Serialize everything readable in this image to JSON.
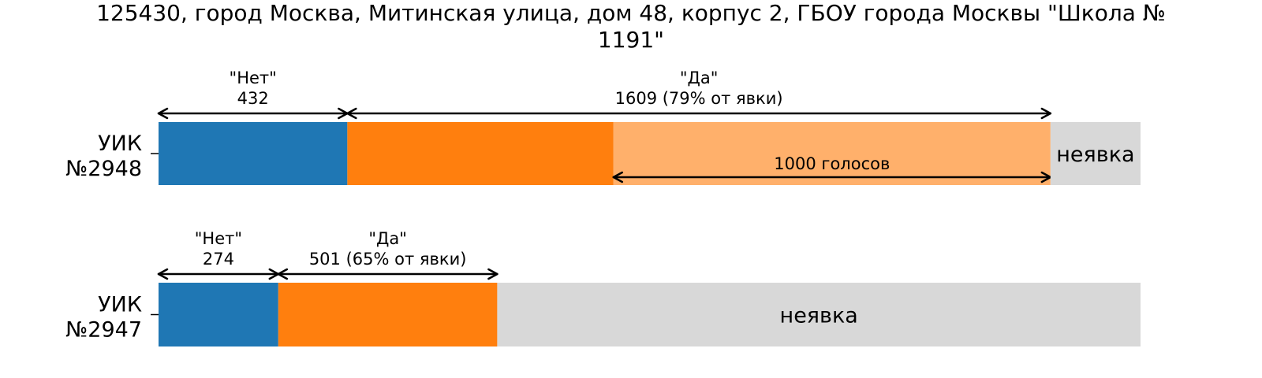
{
  "title_line1": "125430, город Москва, Митинская улица, дом 48, корпус 2, ГБОУ города Москвы \"Школа №",
  "title_line2": "1191\"",
  "chart_data": {
    "type": "bar",
    "orientation": "horizontal",
    "stacked": true,
    "colors": {
      "net": "#1f77b4",
      "da": "#ff7f0e",
      "da_extra": "#ffb06b",
      "noshow": "#d8d8d8",
      "arrow": "#000000"
    },
    "bars": [
      {
        "label": "УИК\n№2948",
        "net": 432,
        "da": 1609,
        "da_split": 609,
        "da_highlight": 1000,
        "no_show": 206,
        "annotations": {
          "net_label": "\"Нет\"",
          "net_value": "432",
          "da_label": "\"Да\"",
          "da_value": "1609 (79% от явки)",
          "highlight_text": "1000 голосов",
          "noshow_text": "неявка"
        }
      },
      {
        "label": "УИК\n№2947",
        "net": 274,
        "da": 501,
        "no_show": 1472,
        "annotations": {
          "net_label": "\"Нет\"",
          "net_value": "274",
          "da_label": "\"Да\"",
          "da_value": "501 (65% от явки)",
          "noshow_text": "неявка"
        }
      }
    ]
  }
}
